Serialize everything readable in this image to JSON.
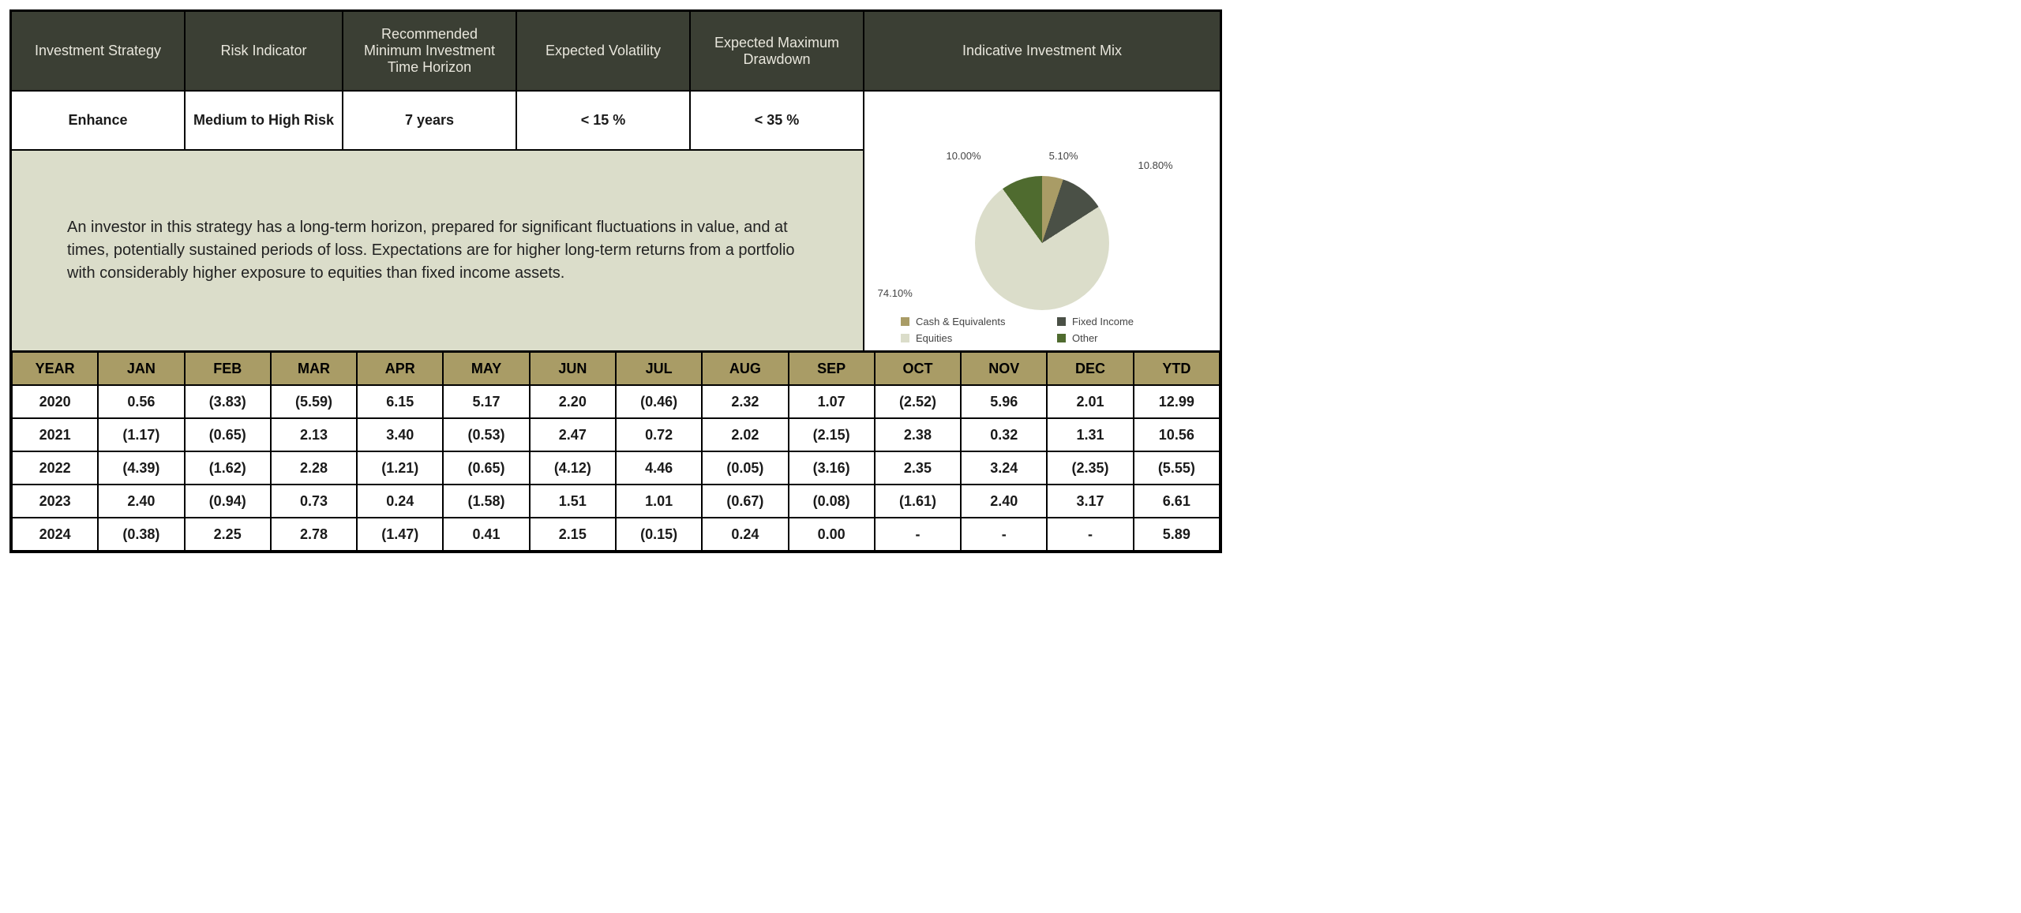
{
  "headers": {
    "strategy": "Investment Strategy",
    "risk": "Risk Indicator",
    "horizon": "Recommended Minimum Investment Time Horizon",
    "volatility": "Expected Volatility",
    "drawdown": "Expected Maximum Drawdown",
    "mix": "Indicative Investment Mix"
  },
  "values": {
    "strategy": "Enhance",
    "risk": "Medium to High Risk",
    "horizon": "7 years",
    "volatility": "< 15 %",
    "drawdown": "< 35 %"
  },
  "description": "An investor in this strategy has a long-term horizon, prepared for significant fluctuations in value, and at times, potentially sustained periods of loss.  Expectations are for higher long-term returns from a portfolio with considerably higher exposure to equities than fixed income assets.",
  "pie": {
    "type": "pie",
    "slices": [
      {
        "label": "Cash & Equivalents",
        "value": 5.1,
        "valueLabel": "5.10%",
        "color": "#a99c66"
      },
      {
        "label": "Fixed Income",
        "value": 10.8,
        "valueLabel": "10.80%",
        "color": "#4a5046"
      },
      {
        "label": "Equities",
        "value": 74.1,
        "valueLabel": "74.10%",
        "color": "#dbddca"
      },
      {
        "label": "Other",
        "value": 10.0,
        "valueLabel": "10.00%",
        "color": "#4f6b2f"
      }
    ],
    "background_color": "#ffffff",
    "label_fontsize": 13,
    "label_color": "#444444"
  },
  "perf": {
    "columns": [
      "YEAR",
      "JAN",
      "FEB",
      "MAR",
      "APR",
      "MAY",
      "JUN",
      "JUL",
      "AUG",
      "SEP",
      "OCT",
      "NOV",
      "DEC",
      "YTD"
    ],
    "header_bg": "#a99c66",
    "header_fg": "#000000",
    "cell_bg": "#ffffff",
    "border_color": "#000000",
    "rows": [
      [
        "2020",
        "0.56",
        "(3.83)",
        "(5.59)",
        "6.15",
        "5.17",
        "2.20",
        "(0.46)",
        "2.32",
        "1.07",
        "(2.52)",
        "5.96",
        "2.01",
        "12.99"
      ],
      [
        "2021",
        "(1.17)",
        "(0.65)",
        "2.13",
        "3.40",
        "(0.53)",
        "2.47",
        "0.72",
        "2.02",
        "(2.15)",
        "2.38",
        "0.32",
        "1.31",
        "10.56"
      ],
      [
        "2022",
        "(4.39)",
        "(1.62)",
        "2.28",
        "(1.21)",
        "(0.65)",
        "(4.12)",
        "4.46",
        "(0.05)",
        "(3.16)",
        "2.35",
        "3.24",
        "(2.35)",
        "(5.55)"
      ],
      [
        "2023",
        "2.40",
        "(0.94)",
        "0.73",
        "0.24",
        "(1.58)",
        "1.51",
        "1.01",
        "(0.67)",
        "(0.08)",
        "(1.61)",
        "2.40",
        "3.17",
        "6.61"
      ],
      [
        "2024",
        "(0.38)",
        "2.25",
        "2.78",
        "(1.47)",
        "0.41",
        "2.15",
        "(0.15)",
        "0.24",
        "0.00",
        "-",
        "-",
        "-",
        "5.89"
      ]
    ]
  },
  "colors": {
    "header_bg": "#3b3f34",
    "header_fg": "#e8e6dc",
    "desc_bg": "#dbddca",
    "border": "#000000"
  }
}
